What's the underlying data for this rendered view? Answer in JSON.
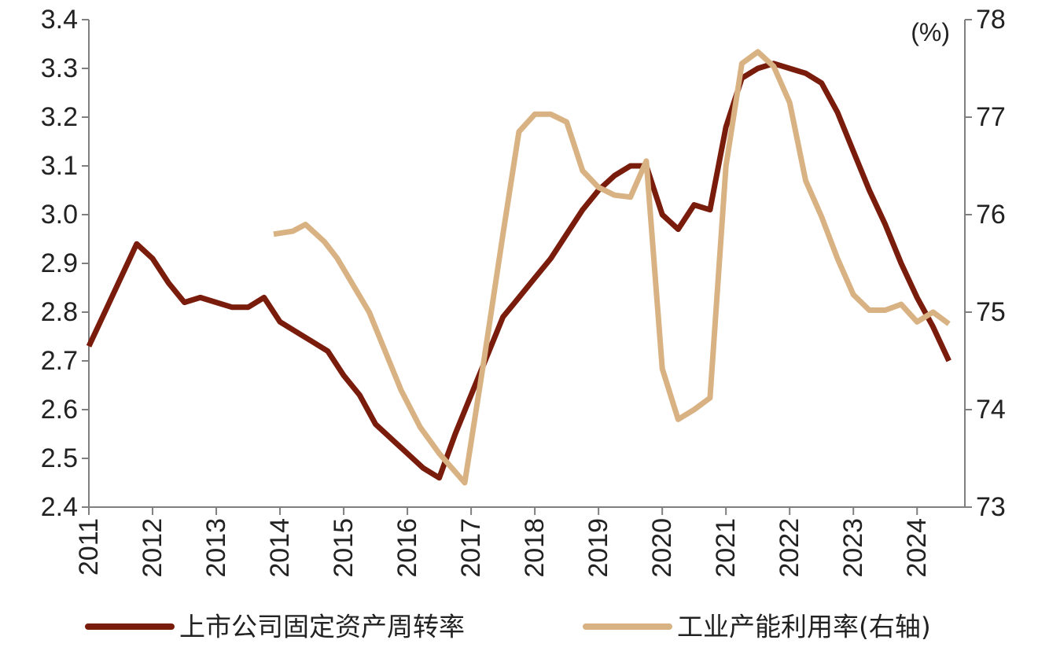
{
  "chart_data": {
    "type": "line",
    "title": "",
    "xlabel": "",
    "ylabel": "",
    "y2label": "",
    "unit_label": "(%)",
    "x_range": [
      2011,
      2024.75
    ],
    "ylim": [
      2.4,
      3.4
    ],
    "y2lim": [
      73,
      78
    ],
    "x_ticks": [
      "2011",
      "2012",
      "2013",
      "2014",
      "2015",
      "2016",
      "2017",
      "2018",
      "2019",
      "2020",
      "2021",
      "2022",
      "2023",
      "2024"
    ],
    "y_ticks": [
      "2.4",
      "2.5",
      "2.6",
      "2.7",
      "2.8",
      "2.9",
      "3.0",
      "3.1",
      "3.2",
      "3.3",
      "3.4"
    ],
    "y2_ticks": [
      "73",
      "74",
      "75",
      "76",
      "77",
      "78"
    ],
    "grid": false,
    "legend_position": "bottom",
    "series": [
      {
        "name": "上市公司固定资产周转率",
        "axis": "left",
        "color": "#7a1c0c",
        "points": [
          [
            2011.0,
            2.73
          ],
          [
            2011.25,
            2.8
          ],
          [
            2011.5,
            2.87
          ],
          [
            2011.75,
            2.94
          ],
          [
            2012.0,
            2.91
          ],
          [
            2012.25,
            2.86
          ],
          [
            2012.5,
            2.82
          ],
          [
            2012.75,
            2.83
          ],
          [
            2013.0,
            2.82
          ],
          [
            2013.25,
            2.81
          ],
          [
            2013.5,
            2.81
          ],
          [
            2013.75,
            2.83
          ],
          [
            2014.0,
            2.78
          ],
          [
            2014.25,
            2.76
          ],
          [
            2014.5,
            2.74
          ],
          [
            2014.75,
            2.72
          ],
          [
            2015.0,
            2.67
          ],
          [
            2015.25,
            2.63
          ],
          [
            2015.5,
            2.57
          ],
          [
            2015.75,
            2.54
          ],
          [
            2016.0,
            2.51
          ],
          [
            2016.25,
            2.48
          ],
          [
            2016.5,
            2.46
          ],
          [
            2016.75,
            2.55
          ],
          [
            2017.0,
            2.63
          ],
          [
            2017.25,
            2.71
          ],
          [
            2017.5,
            2.79
          ],
          [
            2017.75,
            2.83
          ],
          [
            2018.0,
            2.87
          ],
          [
            2018.25,
            2.91
          ],
          [
            2018.5,
            2.96
          ],
          [
            2018.75,
            3.01
          ],
          [
            2019.0,
            3.05
          ],
          [
            2019.25,
            3.08
          ],
          [
            2019.5,
            3.1
          ],
          [
            2019.75,
            3.1
          ],
          [
            2020.0,
            3.0
          ],
          [
            2020.25,
            2.97
          ],
          [
            2020.5,
            3.02
          ],
          [
            2020.75,
            3.01
          ],
          [
            2021.0,
            3.18
          ],
          [
            2021.25,
            3.28
          ],
          [
            2021.5,
            3.3
          ],
          [
            2021.75,
            3.31
          ],
          [
            2022.0,
            3.3
          ],
          [
            2022.25,
            3.29
          ],
          [
            2022.5,
            3.27
          ],
          [
            2022.75,
            3.21
          ],
          [
            2023.0,
            3.13
          ],
          [
            2023.25,
            3.05
          ],
          [
            2023.5,
            2.98
          ],
          [
            2023.75,
            2.9
          ],
          [
            2024.0,
            2.83
          ],
          [
            2024.25,
            2.77
          ],
          [
            2024.5,
            2.7
          ]
        ]
      },
      {
        "name": "工业产能利用率(右轴)",
        "axis": "right",
        "color": "#d9b283",
        "points": [
          [
            2013.9,
            75.8
          ],
          [
            2014.2,
            75.83
          ],
          [
            2014.4,
            75.9
          ],
          [
            2014.7,
            75.72
          ],
          [
            2014.9,
            75.55
          ],
          [
            2015.4,
            75.0
          ],
          [
            2015.6,
            74.68
          ],
          [
            2015.9,
            74.2
          ],
          [
            2016.2,
            73.82
          ],
          [
            2016.5,
            73.55
          ],
          [
            2016.9,
            73.25
          ],
          [
            2017.2,
            74.5
          ],
          [
            2017.5,
            75.8
          ],
          [
            2017.75,
            76.85
          ],
          [
            2018.0,
            77.03
          ],
          [
            2018.25,
            77.03
          ],
          [
            2018.5,
            76.95
          ],
          [
            2018.75,
            76.45
          ],
          [
            2019.0,
            76.28
          ],
          [
            2019.25,
            76.2
          ],
          [
            2019.5,
            76.18
          ],
          [
            2019.75,
            76.55
          ],
          [
            2020.0,
            74.42
          ],
          [
            2020.25,
            73.9
          ],
          [
            2020.5,
            74.0
          ],
          [
            2020.75,
            74.12
          ],
          [
            2021.0,
            76.5
          ],
          [
            2021.25,
            77.55
          ],
          [
            2021.5,
            77.67
          ],
          [
            2021.75,
            77.52
          ],
          [
            2022.0,
            77.15
          ],
          [
            2022.25,
            76.35
          ],
          [
            2022.5,
            75.98
          ],
          [
            2022.75,
            75.55
          ],
          [
            2023.0,
            75.18
          ],
          [
            2023.25,
            75.02
          ],
          [
            2023.5,
            75.02
          ],
          [
            2023.75,
            75.08
          ],
          [
            2024.0,
            74.9
          ],
          [
            2024.25,
            75.0
          ],
          [
            2024.5,
            74.88
          ]
        ]
      }
    ]
  }
}
